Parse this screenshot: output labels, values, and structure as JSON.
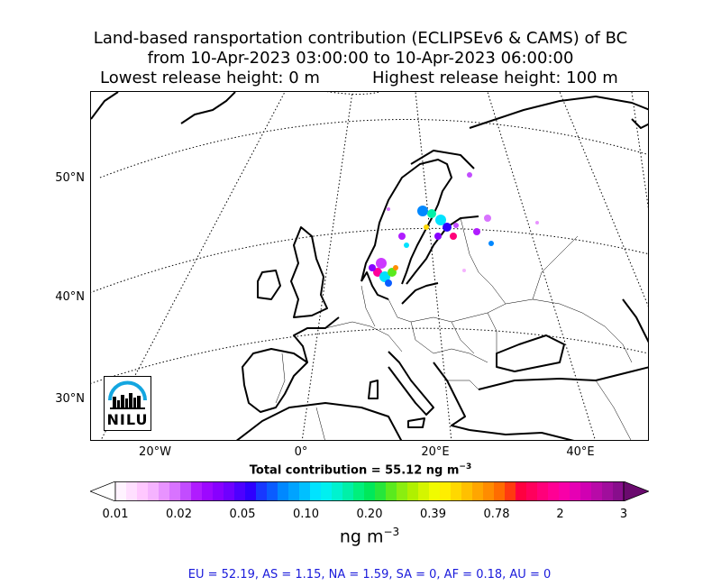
{
  "title": {
    "line1": "Land-based ransportation contribution (ECLIPSEv6 & CAMS) of BC",
    "line2": "from 10-Apr-2023 03:00:00 to 10-Apr-2023 06:00:00",
    "line3_left": "Lowest release height: 0 m",
    "line3_right": "Highest release height: 100 m"
  },
  "map": {
    "lat_labels": [
      "50°N",
      "40°N",
      "30°N"
    ],
    "lon_labels": [
      "20°W",
      "0°",
      "20°E",
      "40°E"
    ],
    "logo_text": "NILU"
  },
  "total": {
    "prefix": "Total contribution = 55.12 ng m",
    "exponent": "−3"
  },
  "colorbar": {
    "tick_labels": [
      "0.01",
      "0.02",
      "0.05",
      "0.10",
      "0.20",
      "0.39",
      "0.78",
      "2",
      "3"
    ],
    "unit": "ng m",
    "unit_exponent": "−3",
    "colors": [
      "#fff3ff",
      "#ffdfff",
      "#ffc8ff",
      "#f5b3ff",
      "#e893ff",
      "#d873ff",
      "#c24cff",
      "#b01cff",
      "#9d08ff",
      "#8800ff",
      "#6f00ff",
      "#4d00ff",
      "#2e00ff",
      "#1838ff",
      "#0a5cff",
      "#0088ff",
      "#00a3ff",
      "#00c0ff",
      "#00e3ff",
      "#00f0f0",
      "#00f2cf",
      "#00f0a8",
      "#00f07c",
      "#00e85a",
      "#26e63b",
      "#5aea1e",
      "#8aee10",
      "#b0f000",
      "#d4f500",
      "#f0fb00",
      "#ffee00",
      "#ffd800",
      "#ffc000",
      "#ffa600",
      "#ff8c00",
      "#ff6c00",
      "#ff3a10",
      "#ff0040",
      "#ff005c",
      "#ff007a",
      "#ff0094",
      "#f800a8",
      "#e600b4",
      "#d000b2",
      "#b80aa8",
      "#a00e9c",
      "#880e8c"
    ],
    "under_color": "#ffffff",
    "over_color": "#6a0a6e"
  },
  "regions": "EU = 52.19,  AS = 1.15,  NA = 1.59,  SA = 0,  AF = 0.18,  AU = 0"
}
